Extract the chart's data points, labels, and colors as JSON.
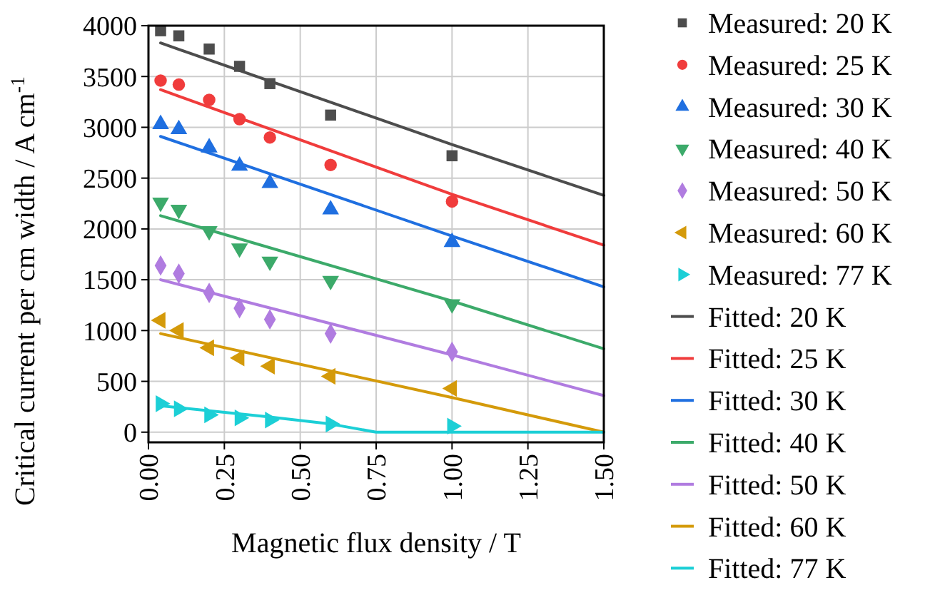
{
  "chart_data": {
    "type": "scatter",
    "xlabel": "Magnetic flux density / T",
    "ylabel": "Critical current per cm width / A cm$^{-1}$",
    "xlim": [
      0,
      1.5
    ],
    "xticks": [
      {
        "value": 0,
        "label": "0.00"
      },
      {
        "value": 0.25,
        "label": "0.25"
      },
      {
        "value": 0.5,
        "label": "0.50"
      },
      {
        "value": 0.75,
        "label": "0.75"
      },
      {
        "value": 1,
        "label": "1.00"
      },
      {
        "value": 1.25,
        "label": "1.25"
      },
      {
        "value": 1.5,
        "label": "1.50"
      }
    ],
    "ylim": [
      -100,
      4000
    ],
    "yticks": [
      0,
      500,
      1000,
      1500,
      2000,
      2500,
      3000,
      3500,
      4000
    ],
    "grid": true,
    "legend": "right",
    "series": [
      {
        "name": "Measured: 20 K",
        "marker": "square",
        "color": "#4d4d4d",
        "x": [
          0.04,
          0.1,
          0.2,
          0.3,
          0.4,
          0.6,
          1.0
        ],
        "values": [
          3950,
          3900,
          3770,
          3600,
          3430,
          3120,
          2720
        ]
      },
      {
        "name": "Measured: 25 K",
        "marker": "circle",
        "color": "#f03c3c",
        "x": [
          0.04,
          0.1,
          0.2,
          0.3,
          0.4,
          0.6,
          1.0
        ],
        "values": [
          3460,
          3420,
          3270,
          3080,
          2900,
          2630,
          2270
        ]
      },
      {
        "name": "Measured: 30 K",
        "marker": "triangle",
        "color": "#1f6fe0",
        "x": [
          0.04,
          0.1,
          0.2,
          0.3,
          0.4,
          0.6,
          1.0
        ],
        "values": [
          3030,
          2980,
          2800,
          2620,
          2450,
          2190,
          1870
        ]
      },
      {
        "name": "Measured: 40 K",
        "marker": "triangle-down",
        "color": "#3caa6a",
        "x": [
          0.04,
          0.1,
          0.2,
          0.3,
          0.4,
          0.6,
          1.0
        ],
        "values": [
          2260,
          2190,
          1980,
          1810,
          1680,
          1490,
          1260
        ]
      },
      {
        "name": "Measured: 50 K",
        "marker": "diamond",
        "color": "#b07ce0",
        "x": [
          0.04,
          0.1,
          0.2,
          0.3,
          0.4,
          0.6,
          1.0
        ],
        "values": [
          1640,
          1560,
          1370,
          1220,
          1110,
          970,
          790
        ]
      },
      {
        "name": "Measured: 60 K",
        "marker": "triangle-left",
        "color": "#d49a0a",
        "x": [
          0.04,
          0.1,
          0.2,
          0.3,
          0.4,
          0.6,
          1.0
        ],
        "values": [
          1100,
          1000,
          830,
          730,
          650,
          550,
          430
        ]
      },
      {
        "name": "Measured: 77 K",
        "marker": "triangle-right",
        "color": "#1ccfd6",
        "x": [
          0.04,
          0.1,
          0.2,
          0.3,
          0.4,
          0.6,
          1.0
        ],
        "values": [
          280,
          230,
          170,
          140,
          120,
          80,
          60
        ]
      },
      {
        "name": "Fitted: 20 K",
        "type": "line",
        "color": "#4d4d4d",
        "x": [
          0.04,
          1.0,
          1.5
        ],
        "values": [
          3830,
          2830,
          2330
        ]
      },
      {
        "name": "Fitted: 25 K",
        "type": "line",
        "color": "#f03c3c",
        "x": [
          0.04,
          1.0,
          1.5
        ],
        "values": [
          3370,
          2340,
          1840
        ]
      },
      {
        "name": "Fitted: 30 K",
        "type": "line",
        "color": "#1f6fe0",
        "x": [
          0.04,
          1.0,
          1.5
        ],
        "values": [
          2910,
          1930,
          1430
        ]
      },
      {
        "name": "Fitted: 40 K",
        "type": "line",
        "color": "#3caa6a",
        "x": [
          0.04,
          1.0,
          1.5
        ],
        "values": [
          2130,
          1290,
          820
        ]
      },
      {
        "name": "Fitted: 50 K",
        "type": "line",
        "color": "#b07ce0",
        "x": [
          0.04,
          1.0,
          1.5
        ],
        "values": [
          1500,
          760,
          360
        ]
      },
      {
        "name": "Fitted: 60 K",
        "type": "line",
        "color": "#d49a0a",
        "x": [
          0.04,
          1.0,
          1.5
        ],
        "values": [
          970,
          340,
          0
        ]
      },
      {
        "name": "Fitted: 77 K",
        "type": "line",
        "color": "#1ccfd6",
        "x": [
          0.04,
          0.4,
          0.6,
          0.75,
          1.0,
          1.5
        ],
        "values": [
          260,
          150,
          80,
          0,
          0,
          0
        ]
      }
    ]
  }
}
